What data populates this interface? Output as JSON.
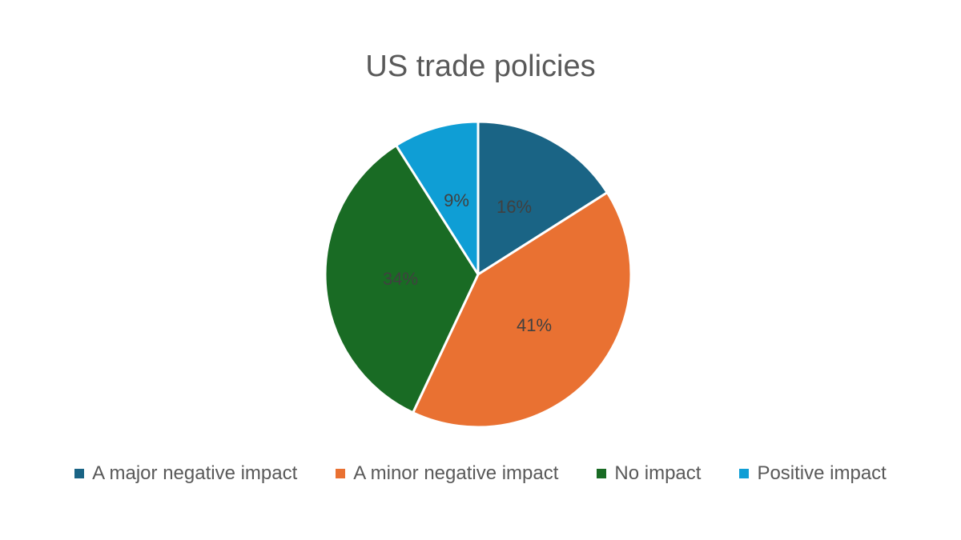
{
  "chart_data": {
    "type": "pie",
    "title": "US trade policies",
    "legend_position": "bottom",
    "slices": [
      {
        "name": "A major negative impact",
        "value": 16,
        "label": "16%",
        "color": "#1a6485"
      },
      {
        "name": "A minor negative impact",
        "value": 41,
        "label": "41%",
        "color": "#e97132"
      },
      {
        "name": "No impact",
        "value": 34,
        "label": "34%",
        "color": "#196b24"
      },
      {
        "name": "Positive impact",
        "value": 9,
        "label": "9%",
        "color": "#0f9ed5"
      }
    ]
  }
}
